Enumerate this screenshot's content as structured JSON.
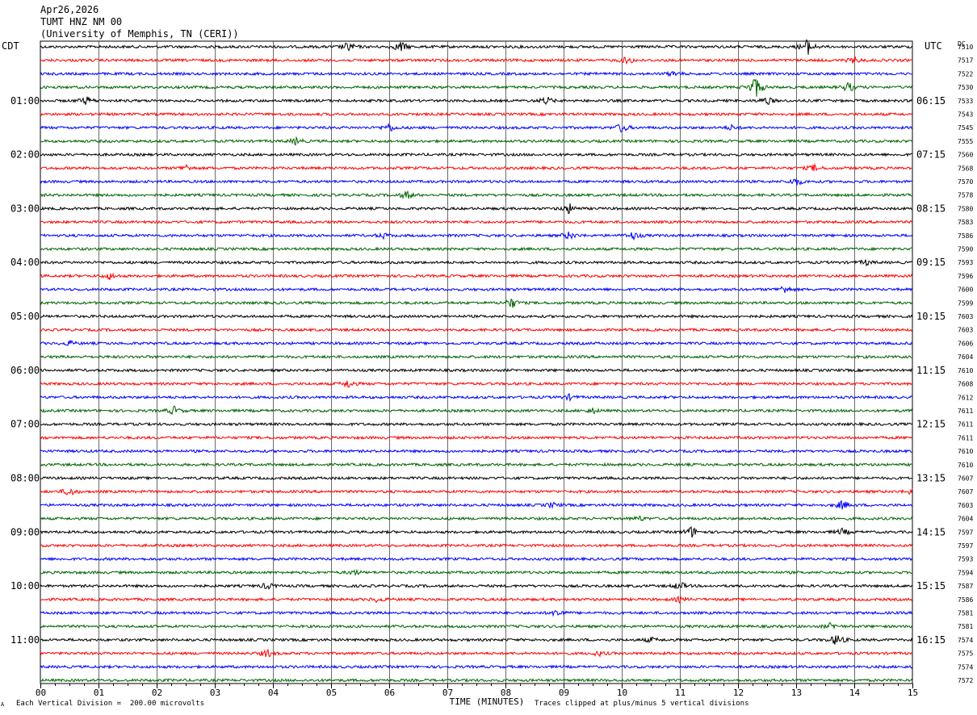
{
  "header": {
    "date": "Apr26,2026",
    "station": "TUMT HNZ NM 00",
    "org": "(University of Memphis, TN (CERI))"
  },
  "left_zone": "CDT",
  "right_zone": "UTC",
  "dc_label": "DC",
  "footer": {
    "left_mark": "A",
    "vertical_division": "Each Vertical Division =  200.00 microvolts",
    "clip_note": "Traces clipped at plus/minus 5 vertical divisions"
  },
  "colors": {
    "trace_cycle": [
      "#000000",
      "#ff0000",
      "#0000ff",
      "#006400"
    ],
    "grid": "#000000"
  },
  "chart_data": {
    "type": "line",
    "xlabel": "TIME (MINUTES)",
    "xlim": [
      0,
      15
    ],
    "x_ticks": [
      "00",
      "01",
      "02",
      "03",
      "04",
      "05",
      "06",
      "07",
      "08",
      "09",
      "10",
      "11",
      "12",
      "13",
      "14",
      "15"
    ],
    "left_hour_labels": [
      "01:00",
      "02:00",
      "03:00",
      "04:00",
      "05:00",
      "06:00",
      "07:00",
      "08:00",
      "09:00",
      "10:00",
      "11:00"
    ],
    "right_hour_labels": [
      "06:15",
      "07:15",
      "08:15",
      "09:15",
      "10:15",
      "11:15",
      "12:15",
      "13:15",
      "14:15",
      "15:15",
      "16:15"
    ],
    "dc_offsets": [
      "7510",
      "7517",
      "7522",
      "7530",
      "7533",
      "7543",
      "7545",
      "7555",
      "7560",
      "7568",
      "7570",
      "7578",
      "7580",
      "7583",
      "7586",
      "7590",
      "7593",
      "7596",
      "7600",
      "7599",
      "7603",
      "7603",
      "7606",
      "7604",
      "7610",
      "7608",
      "7612",
      "7611",
      "7611",
      "7611",
      "7610",
      "7610",
      "7607",
      "7607",
      "7603",
      "7604",
      "7597",
      "7597",
      "7593",
      "7594",
      "7587",
      "7586",
      "7581",
      "7581",
      "7574",
      "7575",
      "7574",
      "7572"
    ],
    "events": [
      {
        "trace": 0,
        "minute": 5.3,
        "amp": 6
      },
      {
        "trace": 0,
        "minute": 6.2,
        "amp": 7
      },
      {
        "trace": 0,
        "minute": 13.2,
        "amp": 10
      },
      {
        "trace": 1,
        "minute": 10.1,
        "amp": 5
      },
      {
        "trace": 1,
        "minute": 14.0,
        "amp": 4
      },
      {
        "trace": 2,
        "minute": 10.9,
        "amp": 3
      },
      {
        "trace": 3,
        "minute": 12.3,
        "amp": 15
      },
      {
        "trace": 3,
        "minute": 13.9,
        "amp": 6
      },
      {
        "trace": 4,
        "minute": 0.8,
        "amp": 5
      },
      {
        "trace": 4,
        "minute": 8.7,
        "amp": 5
      },
      {
        "trace": 4,
        "minute": 12.5,
        "amp": 5
      },
      {
        "trace": 6,
        "minute": 6.0,
        "amp": 5
      },
      {
        "trace": 6,
        "minute": 10.0,
        "amp": 6
      },
      {
        "trace": 6,
        "minute": 11.9,
        "amp": 3
      },
      {
        "trace": 7,
        "minute": 4.4,
        "amp": 4
      },
      {
        "trace": 9,
        "minute": 2.5,
        "amp": 4
      },
      {
        "trace": 9,
        "minute": 13.3,
        "amp": 4
      },
      {
        "trace": 10,
        "minute": 13.0,
        "amp": 5
      },
      {
        "trace": 11,
        "minute": 6.3,
        "amp": 5
      },
      {
        "trace": 12,
        "minute": 9.1,
        "amp": 6
      },
      {
        "trace": 14,
        "minute": 5.9,
        "amp": 3
      },
      {
        "trace": 14,
        "minute": 9.1,
        "amp": 5
      },
      {
        "trace": 14,
        "minute": 10.2,
        "amp": 5
      },
      {
        "trace": 16,
        "minute": 14.2,
        "amp": 3
      },
      {
        "trace": 17,
        "minute": 1.2,
        "amp": 4
      },
      {
        "trace": 18,
        "minute": 12.8,
        "amp": 5
      },
      {
        "trace": 19,
        "minute": 8.1,
        "amp": 7
      },
      {
        "trace": 22,
        "minute": 0.5,
        "amp": 3
      },
      {
        "trace": 25,
        "minute": 5.3,
        "amp": 5
      },
      {
        "trace": 26,
        "minute": 9.1,
        "amp": 3
      },
      {
        "trace": 27,
        "minute": 2.3,
        "amp": 5
      },
      {
        "trace": 27,
        "minute": 9.5,
        "amp": 3
      },
      {
        "trace": 33,
        "minute": 0.5,
        "amp": 6
      },
      {
        "trace": 33,
        "minute": 15.0,
        "amp": 4
      },
      {
        "trace": 34,
        "minute": 13.8,
        "amp": 6
      },
      {
        "trace": 34,
        "minute": 8.8,
        "amp": 3
      },
      {
        "trace": 35,
        "minute": 10.3,
        "amp": 3
      },
      {
        "trace": 36,
        "minute": 11.2,
        "amp": 7
      },
      {
        "trace": 36,
        "minute": 13.8,
        "amp": 4
      },
      {
        "trace": 39,
        "minute": 5.4,
        "amp": 3
      },
      {
        "trace": 40,
        "minute": 3.9,
        "amp": 4
      },
      {
        "trace": 40,
        "minute": 11.0,
        "amp": 5
      },
      {
        "trace": 41,
        "minute": 5.8,
        "amp": 3
      },
      {
        "trace": 41,
        "minute": 11.0,
        "amp": 3
      },
      {
        "trace": 42,
        "minute": 8.9,
        "amp": 5
      },
      {
        "trace": 43,
        "minute": 13.6,
        "amp": 4
      },
      {
        "trace": 44,
        "minute": 13.7,
        "amp": 8
      },
      {
        "trace": 44,
        "minute": 10.5,
        "amp": 3
      },
      {
        "trace": 45,
        "minute": 3.9,
        "amp": 5
      },
      {
        "trace": 45,
        "minute": 9.6,
        "amp": 3
      }
    ]
  }
}
